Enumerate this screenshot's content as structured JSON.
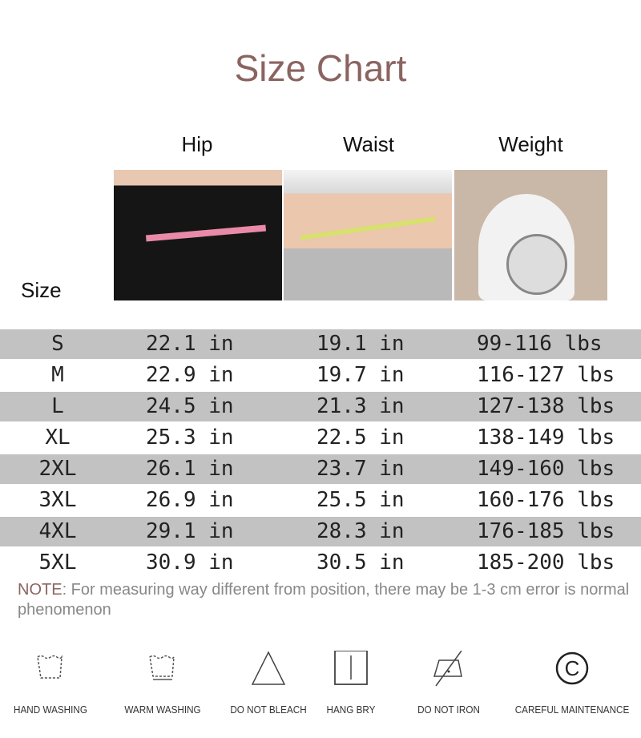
{
  "title": "Size Chart",
  "columns": {
    "size": "Size",
    "hip": "Hip",
    "waist": "Waist",
    "weight": "Weight"
  },
  "rows": [
    {
      "size": "S",
      "hip": "22.1 in",
      "waist": "19.1 in",
      "weight": "99-116 lbs"
    },
    {
      "size": "M",
      "hip": "22.9 in",
      "waist": "19.7 in",
      "weight": "116-127 lbs"
    },
    {
      "size": "L",
      "hip": "24.5 in",
      "waist": "21.3 in",
      "weight": "127-138 lbs"
    },
    {
      "size": "XL",
      "hip": "25.3 in",
      "waist": "22.5 in",
      "weight": "138-149 lbs"
    },
    {
      "size": "2XL",
      "hip": "26.1 in",
      "waist": "23.7 in",
      "weight": "149-160 lbs"
    },
    {
      "size": "3XL",
      "hip": "26.9 in",
      "waist": "25.5 in",
      "weight": "160-176 lbs"
    },
    {
      "size": "4XL",
      "hip": "29.1 in",
      "waist": "28.3 in",
      "weight": "176-185 lbs"
    },
    {
      "size": "5XL",
      "hip": "30.9 in",
      "waist": "30.5 in",
      "weight": "185-200 lbs"
    }
  ],
  "note": {
    "label": "NOTE",
    "text": ": For measuring way different from position, there may be 1-3 cm error is normal phenomenon"
  },
  "care": [
    {
      "icon": "hand-wash-icon",
      "label": "HAND WASHING"
    },
    {
      "icon": "warm-wash-icon",
      "label": "WARM WASHING"
    },
    {
      "icon": "no-bleach-icon",
      "label": "DO NOT BLEACH"
    },
    {
      "icon": "hang-dry-icon",
      "label": "HANG BRY"
    },
    {
      "icon": "no-iron-icon",
      "label": "DO NOT IRON"
    },
    {
      "icon": "careful-maintenance-icon",
      "label": "CAREFUL MAINTENANCE"
    }
  ],
  "colors": {
    "title": "#8a6460",
    "stripe": "#c2c2c2"
  }
}
